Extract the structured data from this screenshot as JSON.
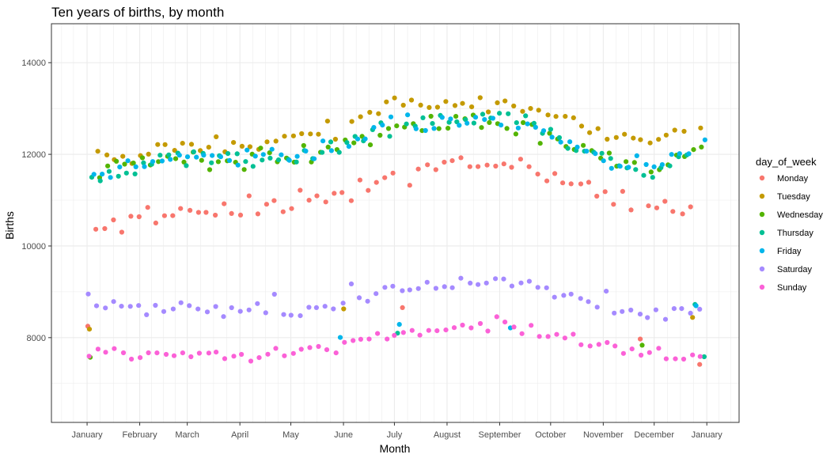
{
  "chart_data": {
    "type": "scatter",
    "title": "Ten years of births, by month",
    "xlabel": "Month",
    "ylabel": "Births",
    "x_axis": {
      "type": "day_of_year",
      "range": [
        -20,
        385
      ],
      "ticks": [
        {
          "label": "January",
          "day": 1
        },
        {
          "label": "February",
          "day": 32
        },
        {
          "label": "March",
          "day": 60
        },
        {
          "label": "April",
          "day": 91
        },
        {
          "label": "May",
          "day": 121
        },
        {
          "label": "June",
          "day": 152
        },
        {
          "label": "July",
          "day": 182
        },
        {
          "label": "August",
          "day": 213
        },
        {
          "label": "September",
          "day": 244
        },
        {
          "label": "October",
          "day": 274
        },
        {
          "label": "November",
          "day": 305
        },
        {
          "label": "December",
          "day": 335
        },
        {
          "label": "January",
          "day": 366
        }
      ]
    },
    "y_axis": {
      "range": [
        6150,
        14850
      ],
      "ticks": [
        8000,
        10000,
        12000,
        14000
      ],
      "tick_labels": [
        "8000",
        "10000",
        "12000",
        "14000"
      ]
    },
    "grid": true,
    "legend": {
      "title": "day_of_week",
      "position": "right"
    },
    "series": [
      {
        "name": "Monday",
        "color": "#F8766D",
        "trend": [
          [
            1,
            10350
          ],
          [
            30,
            10600
          ],
          [
            60,
            10800
          ],
          [
            90,
            10750
          ],
          [
            120,
            10900
          ],
          [
            150,
            11100
          ],
          [
            182,
            11600
          ],
          [
            213,
            11850
          ],
          [
            244,
            11800
          ],
          [
            274,
            11600
          ],
          [
            305,
            11050
          ],
          [
            335,
            10900
          ],
          [
            365,
            10750
          ]
        ],
        "spread": 700
      },
      {
        "name": "Tuesday",
        "color": "#C49A00",
        "trend": [
          [
            1,
            11850
          ],
          [
            30,
            12050
          ],
          [
            60,
            12200
          ],
          [
            90,
            12200
          ],
          [
            120,
            12350
          ],
          [
            150,
            12550
          ],
          [
            182,
            13050
          ],
          [
            213,
            13100
          ],
          [
            244,
            13150
          ],
          [
            274,
            12950
          ],
          [
            305,
            12350
          ],
          [
            335,
            12350
          ],
          [
            365,
            12700
          ]
        ],
        "spread": 650
      },
      {
        "name": "Wednesday",
        "color": "#53B400",
        "trend": [
          [
            1,
            11650
          ],
          [
            30,
            11850
          ],
          [
            60,
            11950
          ],
          [
            90,
            11850
          ],
          [
            120,
            11900
          ],
          [
            150,
            12100
          ],
          [
            182,
            12500
          ],
          [
            213,
            12650
          ],
          [
            244,
            12700
          ],
          [
            274,
            12450
          ],
          [
            305,
            11950
          ],
          [
            335,
            11800
          ],
          [
            365,
            12100
          ]
        ],
        "spread": 650
      },
      {
        "name": "Thursday",
        "color": "#00C094",
        "trend": [
          [
            1,
            11450
          ],
          [
            30,
            11750
          ],
          [
            60,
            11950
          ],
          [
            90,
            11850
          ],
          [
            120,
            11900
          ],
          [
            150,
            12200
          ],
          [
            182,
            12650
          ],
          [
            213,
            12700
          ],
          [
            244,
            12850
          ],
          [
            274,
            12600
          ],
          [
            305,
            11850
          ],
          [
            335,
            11650
          ],
          [
            365,
            11900
          ]
        ],
        "spread": 650
      },
      {
        "name": "Friday",
        "color": "#00B6EB",
        "trend": [
          [
            1,
            11550
          ],
          [
            30,
            11750
          ],
          [
            60,
            11950
          ],
          [
            90,
            11900
          ],
          [
            120,
            11950
          ],
          [
            150,
            12200
          ],
          [
            182,
            12750
          ],
          [
            213,
            12700
          ],
          [
            244,
            12700
          ],
          [
            274,
            12600
          ],
          [
            305,
            11900
          ],
          [
            335,
            11800
          ],
          [
            365,
            12150
          ]
        ],
        "spread": 650
      },
      {
        "name": "Saturday",
        "color": "#A58AFF",
        "trend": [
          [
            1,
            8650
          ],
          [
            30,
            8650
          ],
          [
            60,
            8650
          ],
          [
            90,
            8550
          ],
          [
            120,
            8550
          ],
          [
            150,
            8750
          ],
          [
            182,
            9150
          ],
          [
            213,
            9150
          ],
          [
            244,
            9250
          ],
          [
            274,
            9050
          ],
          [
            305,
            8650
          ],
          [
            335,
            8500
          ],
          [
            365,
            8700
          ]
        ],
        "spread": 450
      },
      {
        "name": "Sunday",
        "color": "#FB61D7",
        "trend": [
          [
            1,
            7650
          ],
          [
            30,
            7700
          ],
          [
            60,
            7650
          ],
          [
            90,
            7550
          ],
          [
            120,
            7700
          ],
          [
            150,
            7850
          ],
          [
            182,
            8050
          ],
          [
            213,
            8150
          ],
          [
            244,
            8300
          ],
          [
            274,
            8050
          ],
          [
            305,
            7800
          ],
          [
            335,
            7600
          ],
          [
            365,
            7550
          ]
        ],
        "spread": 400
      }
    ]
  }
}
